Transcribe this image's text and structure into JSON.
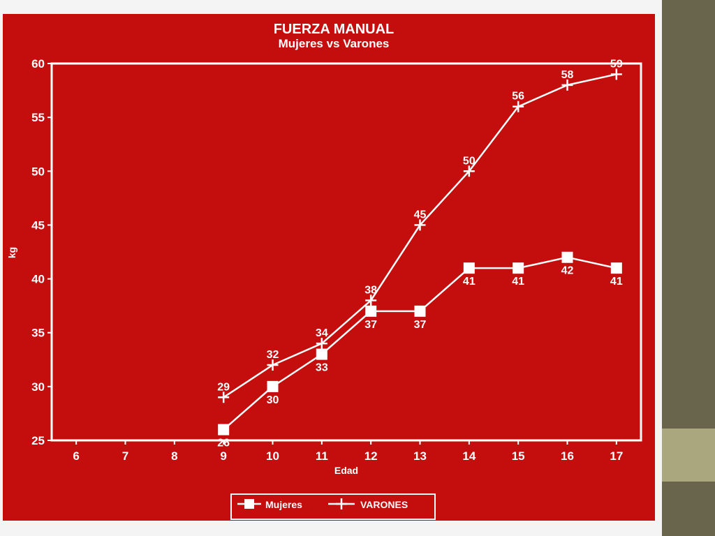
{
  "colors": {
    "chart_background": "#c40d0d",
    "ink": "#ffffff",
    "side_bar": "#69654d",
    "side_accent": "#aaa77f"
  },
  "chart_data": {
    "type": "line",
    "title": "FUERZA MANUAL",
    "subtitle": "Mujeres vs Varones",
    "xlabel": "Edad",
    "ylabel": "kg",
    "x_ticks": [
      6,
      7,
      8,
      9,
      10,
      11,
      12,
      13,
      14,
      15,
      16,
      17
    ],
    "xlim": [
      5.5,
      17.5
    ],
    "ylim": [
      25,
      60
    ],
    "y_ticks": [
      25,
      30,
      35,
      40,
      45,
      50,
      55,
      60
    ],
    "grid": false,
    "legend": "bottom",
    "series": [
      {
        "name": "Mujeres",
        "marker": "square",
        "x": [
          9,
          10,
          11,
          12,
          13,
          14,
          15,
          16,
          17
        ],
        "y": [
          26,
          30,
          33,
          37,
          37,
          41,
          41,
          42,
          41
        ]
      },
      {
        "name": "VARONES",
        "marker": "plus",
        "x": [
          9,
          10,
          11,
          12,
          13,
          14,
          15,
          16,
          17
        ],
        "y": [
          29,
          32,
          34,
          38,
          45,
          50,
          56,
          58,
          59
        ]
      }
    ]
  }
}
